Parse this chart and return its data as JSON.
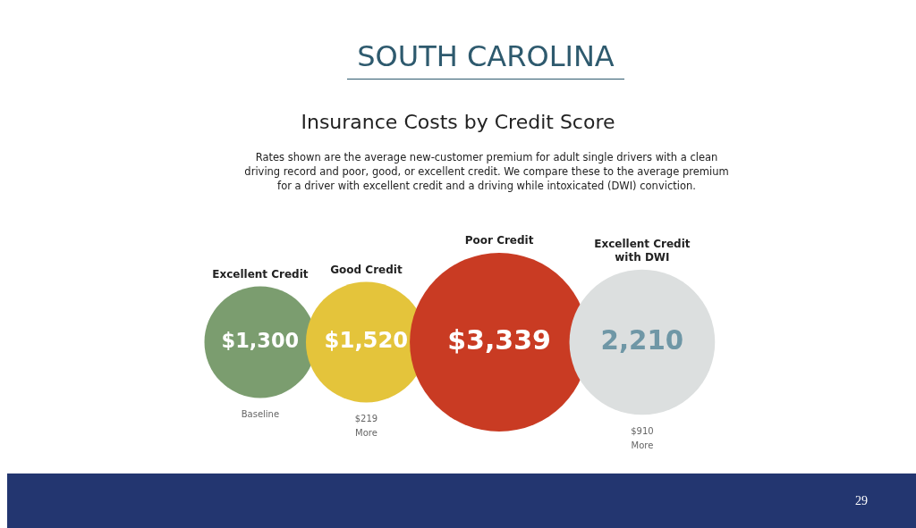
{
  "chart_data": {
    "type": "other",
    "title": "SOUTH CAROLINA",
    "subtitle": "Insurance Costs by Credit Score",
    "categories": [
      "Excellent Credit",
      "Good Credit",
      "Poor Credit",
      "Excellent Credit with DWI"
    ],
    "values": [
      1300,
      1520,
      3339,
      2210
    ],
    "value_labels": [
      "$1,300",
      "$1,520",
      "$3,339",
      "2,210"
    ],
    "colors": [
      "#7b9d6f",
      "#e4c43b",
      "#c93b23",
      "#dcdfdf"
    ],
    "annotations": [
      "Rates shown are the average new-customer premium for adult single drivers with a clean driving record and poor, good, or excellent credit. We compare these to the average premium for a driver with excellent credit and a driving while intoxicated (DWI) conviction.",
      {
        "text": "Baseline",
        "x": "Excellent Credit"
      },
      {
        "text": "$219 More",
        "x": "Good Credit"
      },
      {
        "text": "$910 More",
        "x": "Excellent Credit with DWI"
      },
      "29"
    ]
  }
}
